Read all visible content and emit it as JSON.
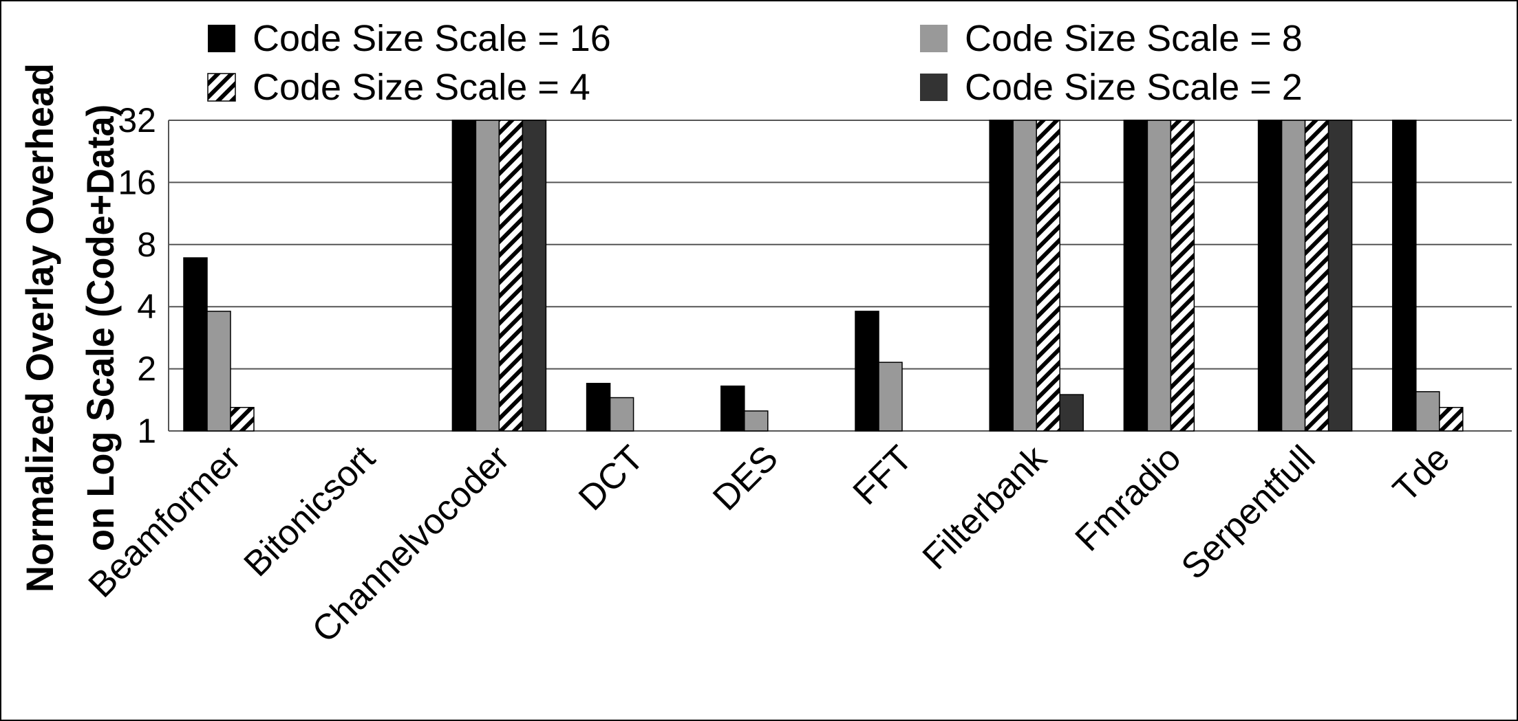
{
  "chart_data": {
    "type": "bar",
    "title": "",
    "xlabel": "",
    "ylabel_lines": [
      "Normalized Overlay Overhead",
      "on Log Scale (Code+Data)"
    ],
    "y_scale": "log2",
    "ylim": [
      1,
      32
    ],
    "yticks": [
      "1",
      "2",
      "4",
      "8",
      "16",
      "32"
    ],
    "grid": true,
    "legend_position": "top",
    "categories": [
      "Beamformer",
      "Bitonicsort",
      "Channelvocoder",
      "DCT",
      "DES",
      "FFT",
      "Filterbank",
      "Fmradio",
      "Serpentfull",
      "Tde"
    ],
    "series": [
      {
        "name": "Code Size Scale = 16",
        "color": "#000000",
        "pattern": "solid",
        "values": [
          6.9,
          1,
          32,
          1.7,
          1.65,
          3.8,
          32,
          32,
          32,
          32
        ]
      },
      {
        "name": "Code Size Scale = 8",
        "color": "#999999",
        "pattern": "solid",
        "values": [
          3.8,
          1,
          32,
          1.45,
          1.25,
          2.15,
          32,
          32,
          32,
          1.55
        ]
      },
      {
        "name": "Code Size Scale = 4",
        "color": "#ffffff",
        "pattern": "hatch",
        "values": [
          1.3,
          1,
          32,
          1,
          1,
          1,
          32,
          32,
          32,
          1.3
        ]
      },
      {
        "name": "Code Size Scale = 2",
        "color": "#333333",
        "pattern": "solid",
        "values": [
          1,
          1,
          32,
          1,
          1,
          1,
          1.5,
          1,
          32,
          1
        ]
      }
    ]
  }
}
